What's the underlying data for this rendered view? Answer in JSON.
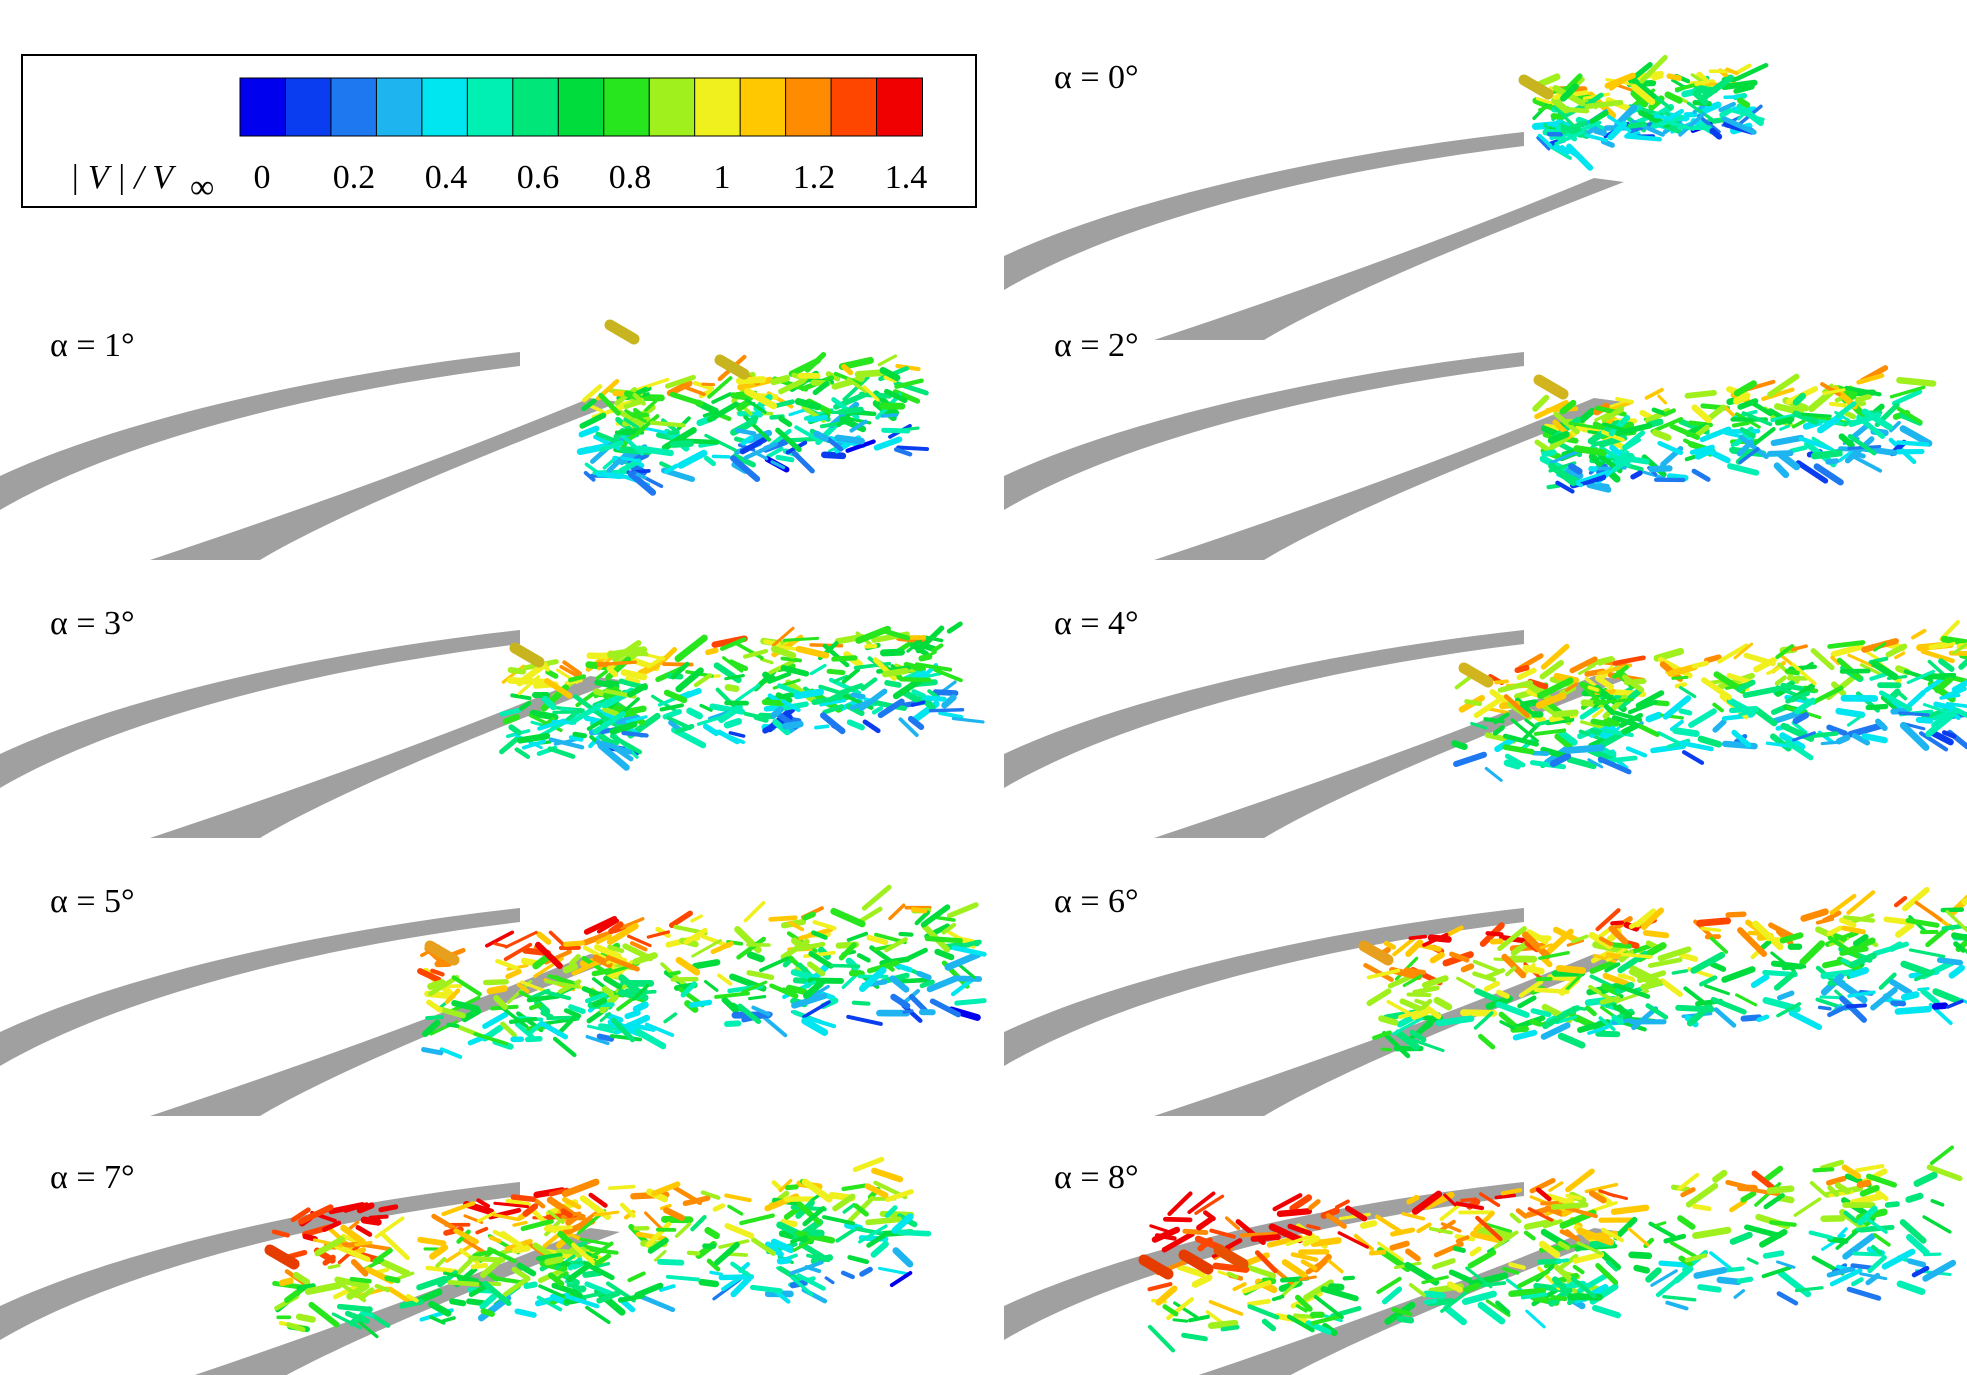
{
  "legend": {
    "variable_label": "| V | / V",
    "variable_subscript": "∞",
    "tick_labels": [
      "0",
      "0.2",
      "0.4",
      "0.6",
      "0.8",
      "1",
      "1.2",
      "1.4"
    ],
    "colormap": [
      "#0000ee",
      "#0a3cf0",
      "#1e78f0",
      "#1eb4f0",
      "#00e6f0",
      "#00f0b4",
      "#00e678",
      "#00dc3c",
      "#28e61e",
      "#a0f01e",
      "#f0f01e",
      "#ffc800",
      "#ff8c00",
      "#ff4600",
      "#f00000"
    ]
  },
  "panels": [
    {
      "id": "a0",
      "label": "α = 0°"
    },
    {
      "id": "a1",
      "label": "α = 1°"
    },
    {
      "id": "a2",
      "label": "α = 2°"
    },
    {
      "id": "a3",
      "label": "α = 3°"
    },
    {
      "id": "a4",
      "label": "α = 4°"
    },
    {
      "id": "a5",
      "label": "α = 5°"
    },
    {
      "id": "a6",
      "label": "α = 6°"
    },
    {
      "id": "a7",
      "label": "α = 7°"
    },
    {
      "id": "a8",
      "label": "α = 8°"
    }
  ],
  "colors": {
    "blade": "#a0a0a0",
    "background": "#ffffff"
  }
}
